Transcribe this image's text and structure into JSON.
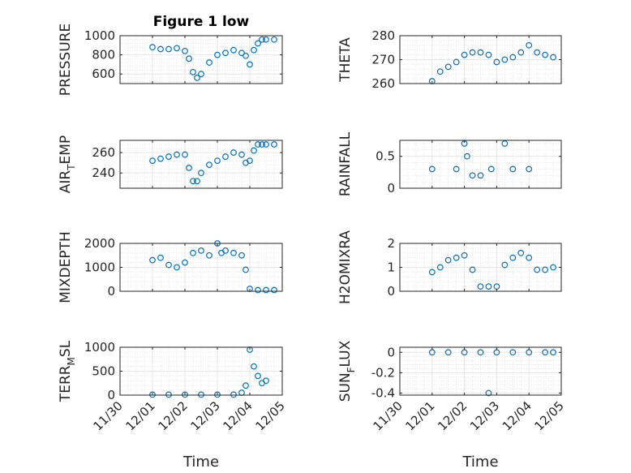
{
  "chart_data": [
    {
      "type": "scatter",
      "title": "Figure 1 low",
      "ylabel": "PRESSURE",
      "ylim": [
        500,
        1000
      ],
      "yticks": [
        600,
        800,
        1000
      ],
      "yticklabels": [
        "600",
        "800",
        "1000"
      ],
      "grid": true,
      "minor_grid": true,
      "x": [
        "12/01 00:00",
        "12/01 06:00",
        "12/01 12:00",
        "12/01 18:00",
        "12/02 00:00",
        "12/02 03:00",
        "12/02 06:00",
        "12/02 09:00",
        "12/02 12:00",
        "12/02 18:00",
        "12/03 00:00",
        "12/03 06:00",
        "12/03 12:00",
        "12/03 18:00",
        "12/03 21:00",
        "12/04 00:00",
        "12/04 03:00",
        "12/04 06:00",
        "12/04 09:00",
        "12/04 12:00",
        "12/04 18:00"
      ],
      "values": [
        880,
        860,
        860,
        870,
        840,
        760,
        620,
        560,
        600,
        720,
        800,
        820,
        850,
        820,
        790,
        700,
        850,
        920,
        960,
        960,
        960
      ]
    },
    {
      "type": "scatter",
      "title": "",
      "ylabel": "THETA",
      "ylim": [
        260,
        280
      ],
      "yticks": [
        260,
        270,
        280
      ],
      "yticklabels": [
        "260",
        "270",
        "280"
      ],
      "grid": true,
      "minor_grid": true,
      "x": [
        "12/01 00:00",
        "12/01 06:00",
        "12/01 12:00",
        "12/01 18:00",
        "12/02 00:00",
        "12/02 06:00",
        "12/02 12:00",
        "12/02 18:00",
        "12/03 00:00",
        "12/03 06:00",
        "12/03 12:00",
        "12/03 18:00",
        "12/04 00:00",
        "12/04 06:00",
        "12/04 12:00",
        "12/04 18:00"
      ],
      "values": [
        261,
        265,
        267,
        269,
        272,
        273,
        273,
        272,
        269,
        270,
        271,
        273,
        276,
        273,
        272,
        271
      ]
    },
    {
      "type": "scatter",
      "title": "",
      "ylabel": "AIR_TEMP",
      "ylim": [
        225,
        272
      ],
      "yticks": [
        240,
        260
      ],
      "yticklabels": [
        "240",
        "260"
      ],
      "grid": true,
      "minor_grid": true,
      "x": [
        "12/01 00:00",
        "12/01 06:00",
        "12/01 12:00",
        "12/01 18:00",
        "12/02 00:00",
        "12/02 03:00",
        "12/02 06:00",
        "12/02 09:00",
        "12/02 12:00",
        "12/02 18:00",
        "12/03 00:00",
        "12/03 06:00",
        "12/03 12:00",
        "12/03 18:00",
        "12/03 21:00",
        "12/04 00:00",
        "12/04 03:00",
        "12/04 06:00",
        "12/04 09:00",
        "12/04 12:00",
        "12/04 18:00"
      ],
      "values": [
        252,
        254,
        256,
        258,
        258,
        245,
        232,
        232,
        240,
        248,
        252,
        256,
        260,
        258,
        250,
        252,
        262,
        268,
        268,
        268,
        268
      ]
    },
    {
      "type": "scatter",
      "title": "",
      "ylabel": "RAINFALL",
      "ylim": [
        0,
        0.75
      ],
      "yticks": [
        0,
        0.5
      ],
      "yticklabels": [
        "0",
        "0.5"
      ],
      "grid": true,
      "minor_grid": true,
      "x": [
        "12/01 00:00",
        "12/01 18:00",
        "12/02 00:00",
        "12/02 02:00",
        "12/02 06:00",
        "12/02 12:00",
        "12/02 20:00",
        "12/03 06:00",
        "12/03 12:00",
        "12/04 00:00"
      ],
      "values": [
        0.3,
        0.3,
        0.7,
        0.5,
        0.2,
        0.2,
        0.3,
        0.7,
        0.3,
        0.3
      ]
    },
    {
      "type": "scatter",
      "title": "",
      "ylabel": "MIXDEPTH",
      "ylim": [
        0,
        2000
      ],
      "yticks": [
        0,
        1000,
        2000
      ],
      "yticklabels": [
        "0",
        "1000",
        "2000"
      ],
      "grid": true,
      "minor_grid": true,
      "x": [
        "12/01 00:00",
        "12/01 06:00",
        "12/01 12:00",
        "12/01 18:00",
        "12/02 00:00",
        "12/02 06:00",
        "12/02 12:00",
        "12/02 18:00",
        "12/03 00:00",
        "12/03 03:00",
        "12/03 06:00",
        "12/03 12:00",
        "12/03 18:00",
        "12/03 21:00",
        "12/04 00:00",
        "12/04 06:00",
        "12/04 12:00",
        "12/04 18:00"
      ],
      "values": [
        1300,
        1400,
        1100,
        1000,
        1200,
        1600,
        1700,
        1500,
        2000,
        1600,
        1700,
        1600,
        1500,
        900,
        100,
        50,
        50,
        50
      ]
    },
    {
      "type": "scatter",
      "title": "",
      "ylabel": "H2OMIXRA",
      "ylim": [
        0,
        2
      ],
      "yticks": [
        0,
        1,
        2
      ],
      "yticklabels": [
        "0",
        "1",
        "2"
      ],
      "grid": true,
      "minor_grid": true,
      "x": [
        "12/01 00:00",
        "12/01 06:00",
        "12/01 12:00",
        "12/01 18:00",
        "12/02 00:00",
        "12/02 06:00",
        "12/02 12:00",
        "12/02 18:00",
        "12/03 00:00",
        "12/03 06:00",
        "12/03 12:00",
        "12/03 18:00",
        "12/04 00:00",
        "12/04 06:00",
        "12/04 12:00",
        "12/04 18:00"
      ],
      "values": [
        0.8,
        1.0,
        1.3,
        1.4,
        1.5,
        0.9,
        0.2,
        0.2,
        0.2,
        1.1,
        1.4,
        1.6,
        1.4,
        0.9,
        0.9,
        1.0
      ]
    },
    {
      "type": "scatter",
      "title": "",
      "ylabel": "TERR_MSL",
      "ylim": [
        0,
        1000
      ],
      "yticks": [
        0,
        500,
        1000
      ],
      "yticklabels": [
        "0",
        "500",
        "1000"
      ],
      "grid": true,
      "minor_grid": true,
      "xlabel": "Time",
      "xticklabels": [
        "11/30",
        "12/01",
        "12/02",
        "12/03",
        "12/04",
        "12/05"
      ],
      "x": [
        "12/01 00:00",
        "12/01 12:00",
        "12/02 00:00",
        "12/02 12:00",
        "12/03 00:00",
        "12/03 12:00",
        "12/03 18:00",
        "12/03 21:00",
        "12/04 00:00",
        "12/04 03:00",
        "12/04 06:00",
        "12/04 09:00",
        "12/04 12:00"
      ],
      "values": [
        10,
        10,
        10,
        10,
        10,
        10,
        50,
        200,
        950,
        600,
        400,
        250,
        300
      ]
    },
    {
      "type": "scatter",
      "title": "",
      "ylabel": "SUN_FLUX",
      "ylim": [
        -0.42,
        0.05
      ],
      "yticks": [
        -0.4,
        -0.2,
        0
      ],
      "yticklabels": [
        "-0.4",
        "-0.2",
        "0"
      ],
      "grid": true,
      "minor_grid": true,
      "xlabel": "Time",
      "xticklabels": [
        "11/30",
        "12/01",
        "12/02",
        "12/03",
        "12/04",
        "12/05"
      ],
      "x": [
        "12/01 00:00",
        "12/01 12:00",
        "12/02 00:00",
        "12/02 12:00",
        "12/03 00:00",
        "12/03 12:00",
        "12/04 00:00",
        "12/04 12:00",
        "12/04 18:00",
        "12/02 18:00"
      ],
      "values": [
        0,
        0,
        0,
        0,
        0,
        0,
        0,
        0,
        0,
        -0.4
      ]
    }
  ],
  "style": {
    "marker_color": "#0072BD",
    "axis_color": "#262626",
    "grid_color": "#E6E6E6"
  }
}
